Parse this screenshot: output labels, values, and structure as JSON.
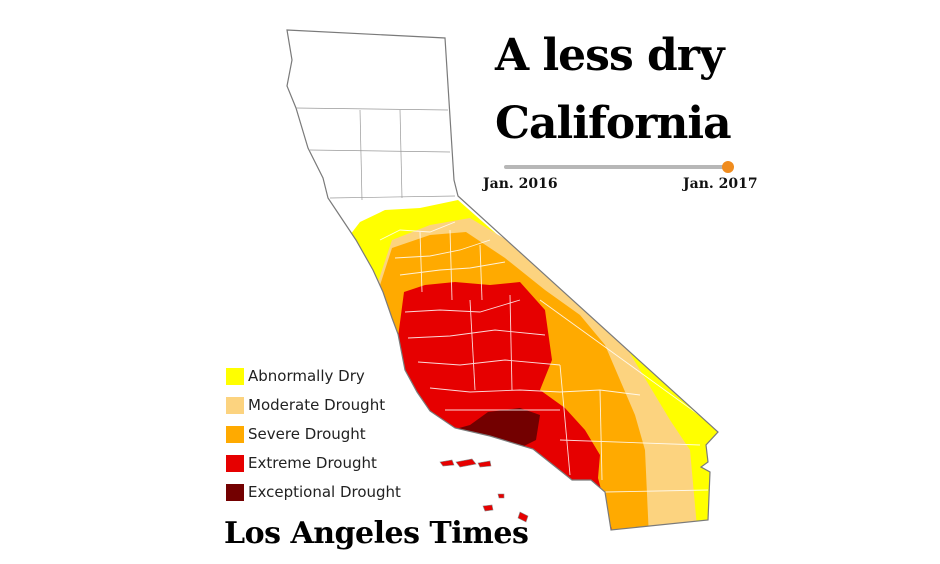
{
  "title": {
    "line1": "A less dry",
    "line2": "California"
  },
  "timeline": {
    "start_label": "Jan. 2016",
    "end_label": "Jan. 2017",
    "position": 1.0,
    "marker_color": "#f08c1e",
    "track_color": "#b7b7b7"
  },
  "legend": [
    {
      "label": "Abnormally Dry",
      "color": "#ffff00"
    },
    {
      "label": "Moderate Drought",
      "color": "#fcd37f"
    },
    {
      "label": "Severe Drought",
      "color": "#ffaa00"
    },
    {
      "label": "Extreme Drought",
      "color": "#e60000"
    },
    {
      "label": "Exceptional Drought",
      "color": "#730000"
    }
  ],
  "masthead": "Los Angeles Times"
}
